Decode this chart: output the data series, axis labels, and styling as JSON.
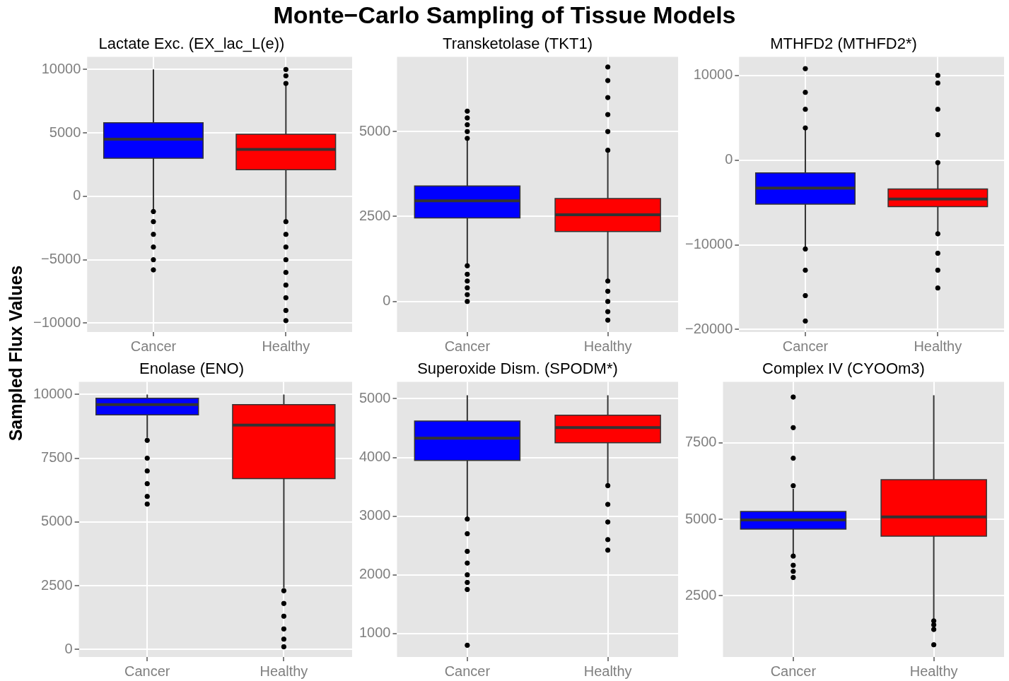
{
  "chart_data": [
    {
      "type": "box",
      "title": "Lactate Exc. (EX_lac_L(e))",
      "annotations": [
        "Monte−Carlo Sampling of Tissue Models"
      ],
      "ylabel": "Sampled Flux Values",
      "categories": [
        "Cancer",
        "Healthy"
      ],
      "colors": [
        "#0000ff",
        "#ff0000"
      ],
      "boxes": [
        {
          "low": -1100,
          "q1": 3000,
          "median": 4500,
          "q3": 5800,
          "high": 10000,
          "outliers": [
            -1200,
            -2000,
            -3000,
            -4000,
            -5000,
            -5800
          ]
        },
        {
          "low": -1900,
          "q1": 2100,
          "median": 3700,
          "q3": 4900,
          "high": 8800,
          "outliers": [
            -2000,
            -3000,
            -4000,
            -5000,
            -6000,
            -7000,
            -8000,
            -9000,
            -9800,
            8900,
            9500,
            10000
          ]
        }
      ],
      "ylim": [
        -10700,
        11000
      ],
      "yticks": [
        {
          "value": -10000,
          "label": "−10000"
        },
        {
          "value": -5000,
          "label": "−5000"
        },
        0,
        5000,
        10000
      ],
      "grid": true,
      "legend": false
    },
    {
      "type": "box",
      "title": "Transketolase (TKT1)",
      "categories": [
        "Cancer",
        "Healthy"
      ],
      "colors": [
        "#0000ff",
        "#ff0000"
      ],
      "boxes": [
        {
          "low": 1100,
          "q1": 2460,
          "median": 2960,
          "q3": 3400,
          "high": 4750,
          "outliers": [
            4800,
            5000,
            5200,
            5400,
            5600,
            1050,
            800,
            600,
            400,
            200,
            0
          ]
        },
        {
          "low": 650,
          "q1": 2060,
          "median": 2550,
          "q3": 3030,
          "high": 4400,
          "outliers": [
            4450,
            5000,
            5500,
            6000,
            6500,
            6900,
            600,
            300,
            0,
            -300,
            -550
          ]
        }
      ],
      "ylim": [
        -900,
        7200
      ],
      "yticks": [
        0,
        2500,
        5000
      ],
      "grid": true,
      "legend": false
    },
    {
      "type": "box",
      "title": "MTHFD2 (MTHFD2*)",
      "categories": [
        "Cancer",
        "Healthy"
      ],
      "colors": [
        "#0000ff",
        "#ff0000"
      ],
      "boxes": [
        {
          "low": -10400,
          "q1": -5200,
          "median": -3300,
          "q3": -1500,
          "high": 3700,
          "outliers": [
            3800,
            6000,
            8000,
            10800,
            -10500,
            -13000,
            -16000,
            -19000
          ]
        },
        {
          "low": -8600,
          "q1": -5500,
          "median": -4600,
          "q3": -3400,
          "high": -400,
          "outliers": [
            -300,
            3000,
            6000,
            9100,
            10000,
            -8700,
            -11000,
            -13000,
            -15100
          ]
        }
      ],
      "ylim": [
        -20300,
        12200
      ],
      "yticks": [
        {
          "value": -20000,
          "label": "−20000"
        },
        {
          "value": -10000,
          "label": "−10000"
        },
        0,
        10000
      ],
      "grid": true,
      "legend": false
    },
    {
      "type": "box",
      "title": "Enolase (ENO)",
      "categories": [
        "Cancer",
        "Healthy"
      ],
      "colors": [
        "#0000ff",
        "#ff0000"
      ],
      "boxes": [
        {
          "low": 8300,
          "q1": 9200,
          "median": 9600,
          "q3": 9850,
          "high": 10000,
          "outliers": [
            8200,
            7500,
            7000,
            6500,
            6000,
            5700
          ]
        },
        {
          "low": 2400,
          "q1": 6700,
          "median": 8800,
          "q3": 9600,
          "high": 10000,
          "outliers": [
            2300,
            1800,
            1300,
            800,
            400,
            100
          ]
        }
      ],
      "ylim": [
        -300,
        10500
      ],
      "yticks": [
        0,
        2500,
        5000,
        7500,
        10000
      ],
      "grid": true,
      "legend": false
    },
    {
      "type": "box",
      "title": "Superoxide Dism. (SPODM*)",
      "categories": [
        "Cancer",
        "Healthy"
      ],
      "colors": [
        "#0000ff",
        "#ff0000"
      ],
      "boxes": [
        {
          "low": 2970,
          "q1": 3950,
          "median": 4330,
          "q3": 4620,
          "high": 5060,
          "outliers": [
            2950,
            2700,
            2400,
            2200,
            2000,
            1870,
            1750,
            800
          ]
        },
        {
          "low": 3550,
          "q1": 4250,
          "median": 4510,
          "q3": 4720,
          "high": 5060,
          "outliers": [
            3520,
            3200,
            2900,
            2600,
            2420
          ]
        }
      ],
      "ylim": [
        600,
        5290
      ],
      "yticks": [
        1000,
        2000,
        3000,
        4000,
        5000
      ],
      "grid": true,
      "legend": false
    },
    {
      "type": "box",
      "title": "Complex IV (CYOOm3)",
      "categories": [
        "Cancer",
        "Healthy"
      ],
      "colors": [
        "#0000ff",
        "#ff0000"
      ],
      "boxes": [
        {
          "low": 3850,
          "q1": 4680,
          "median": 4980,
          "q3": 5260,
          "high": 6000,
          "outliers": [
            6100,
            7000,
            8000,
            9000,
            3800,
            3500,
            3300,
            3100
          ]
        },
        {
          "low": 1750,
          "q1": 4450,
          "median": 5080,
          "q3": 6300,
          "high": 9060,
          "outliers": [
            1680,
            1550,
            1400,
            900
          ]
        }
      ],
      "ylim": [
        500,
        9500
      ],
      "yticks": [
        2500,
        5000,
        7500
      ],
      "grid": true,
      "legend": false
    }
  ]
}
